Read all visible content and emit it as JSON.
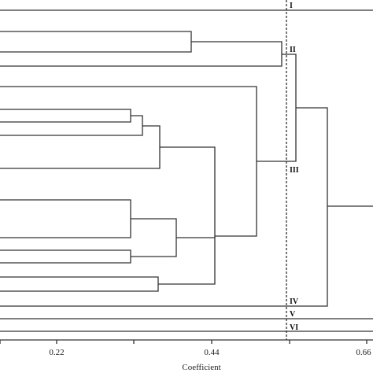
{
  "figure": {
    "type": "dendrogram",
    "x_axis": {
      "title": "Coefficient",
      "ticks": [
        {
          "label": "0.22"
        },
        {
          "label": "0.44"
        },
        {
          "label": "0.66"
        }
      ]
    },
    "cutoff_line": "dashed",
    "group_labels": [
      "I",
      "II",
      "III",
      "IV",
      "V",
      "VI"
    ]
  }
}
